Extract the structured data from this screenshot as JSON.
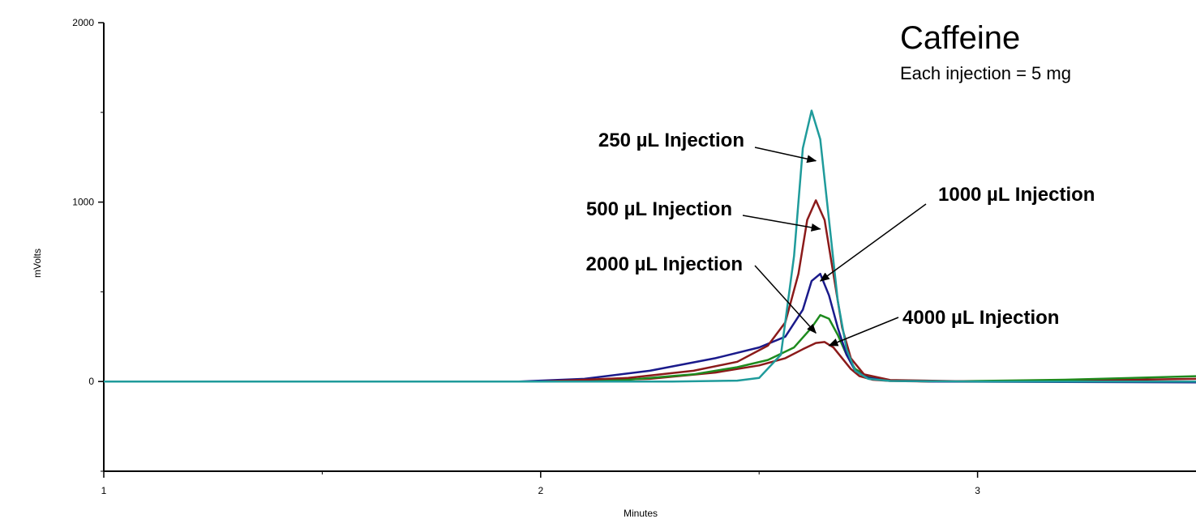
{
  "chart_data": {
    "type": "line",
    "title": "Caffeine",
    "subtitle": "Each injection = 5 mg",
    "xlabel": "Minutes",
    "ylabel": "mVolts",
    "xlim": [
      1,
      3.5
    ],
    "ylim": [
      -500,
      2000
    ],
    "x_ticks": [
      1,
      2,
      3
    ],
    "y_ticks": [
      0,
      1000,
      2000
    ],
    "grid": false,
    "series": [
      {
        "name": "250 µL Injection",
        "color": "#1f9b9b",
        "x": [
          1.0,
          2.0,
          2.3,
          2.45,
          2.5,
          2.55,
          2.58,
          2.6,
          2.62,
          2.64,
          2.66,
          2.68,
          2.7,
          2.72,
          2.75,
          2.8,
          3.0,
          3.5
        ],
        "y": [
          0,
          0,
          0,
          5,
          20,
          150,
          700,
          1300,
          1510,
          1350,
          900,
          450,
          180,
          60,
          15,
          3,
          0,
          0
        ]
      },
      {
        "name": "500 µL Injection",
        "color": "#8b1a1a",
        "x": [
          1.0,
          2.0,
          2.2,
          2.35,
          2.45,
          2.52,
          2.56,
          2.59,
          2.61,
          2.63,
          2.65,
          2.67,
          2.69,
          2.71,
          2.74,
          2.8,
          3.0,
          3.5
        ],
        "y": [
          0,
          0,
          20,
          60,
          110,
          200,
          330,
          600,
          900,
          1010,
          900,
          600,
          300,
          130,
          40,
          8,
          0,
          0
        ]
      },
      {
        "name": "1000 µL Injection",
        "color": "#1a1a8b",
        "x": [
          1.0,
          1.95,
          2.1,
          2.25,
          2.4,
          2.5,
          2.56,
          2.6,
          2.62,
          2.64,
          2.66,
          2.68,
          2.7,
          2.72,
          2.75,
          2.8,
          2.9,
          3.5
        ],
        "y": [
          0,
          0,
          15,
          60,
          130,
          190,
          250,
          400,
          560,
          600,
          480,
          300,
          150,
          60,
          20,
          5,
          0,
          -5
        ]
      },
      {
        "name": "2000 µL Injection",
        "color": "#1e8b1e",
        "x": [
          1.0,
          2.0,
          2.2,
          2.35,
          2.45,
          2.52,
          2.58,
          2.62,
          2.64,
          2.66,
          2.68,
          2.7,
          2.72,
          2.75,
          2.8,
          2.9,
          3.2,
          3.5
        ],
        "y": [
          0,
          0,
          10,
          40,
          80,
          120,
          190,
          300,
          370,
          350,
          260,
          150,
          70,
          25,
          5,
          0,
          10,
          30
        ]
      },
      {
        "name": "4000 µL Injection",
        "color": "#8b1a1a",
        "x": [
          1.0,
          2.0,
          2.25,
          2.4,
          2.5,
          2.56,
          2.6,
          2.63,
          2.65,
          2.67,
          2.69,
          2.71,
          2.73,
          2.76,
          2.8,
          2.9,
          3.2,
          3.5
        ],
        "y": [
          0,
          0,
          15,
          50,
          90,
          130,
          180,
          215,
          220,
          190,
          130,
          70,
          30,
          10,
          3,
          0,
          5,
          15
        ]
      }
    ],
    "annotations": [
      {
        "text": "250 µL Injection",
        "target_x": 2.63,
        "target_y": 1230
      },
      {
        "text": "500 µL Injection",
        "target_x": 2.64,
        "target_y": 850
      },
      {
        "text": "1000 µL Injection",
        "target_x": 2.64,
        "target_y": 560
      },
      {
        "text": "2000 µL Injection",
        "target_x": 2.63,
        "target_y": 270
      },
      {
        "text": "4000 µL Injection",
        "target_x": 2.66,
        "target_y": 200
      }
    ]
  }
}
